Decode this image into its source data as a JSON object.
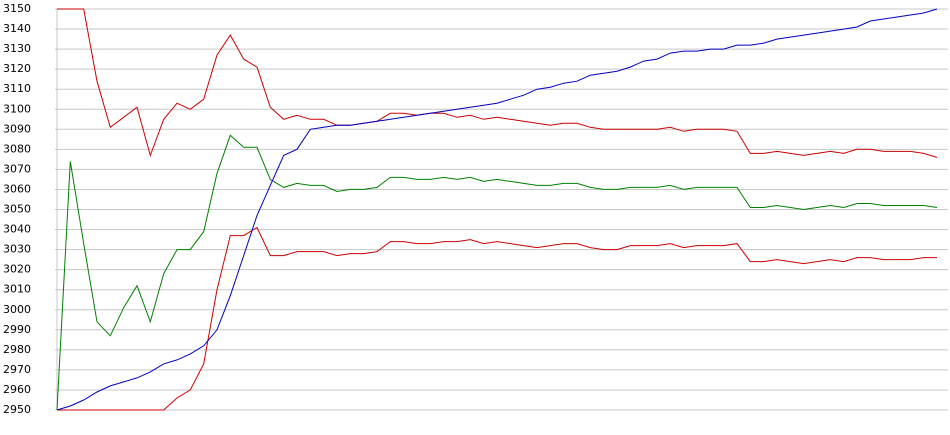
{
  "chart_data": {
    "type": "line",
    "categories": [
      null,
      null,
      null,
      null,
      null,
      null,
      null,
      null,
      null,
      null,
      null,
      null,
      null,
      null,
      null,
      null,
      null,
      null,
      null,
      null,
      null,
      null,
      null,
      null,
      null,
      null,
      null,
      null,
      null,
      null,
      null,
      null,
      null,
      null,
      null,
      null,
      null,
      null,
      null,
      null,
      null,
      null,
      null,
      null,
      null,
      null,
      null,
      null,
      null,
      null,
      null,
      null,
      null,
      null,
      null,
      null,
      null,
      null,
      null,
      null,
      null,
      null,
      null,
      null,
      null,
      null,
      null
    ],
    "ylim": [
      2950,
      3150
    ],
    "yticks": [
      2950,
      2960,
      2970,
      2980,
      2990,
      3000,
      3010,
      3020,
      3030,
      3040,
      3050,
      3060,
      3070,
      3080,
      3090,
      3100,
      3110,
      3120,
      3130,
      3140,
      3150
    ],
    "grid": true,
    "series": [
      {
        "color": "#cc0000",
        "values": [
          3150,
          3150,
          3150,
          3114,
          3091,
          3096,
          3101,
          3077,
          3095,
          3103,
          3100,
          3105,
          3127,
          3137,
          3125,
          3121,
          3101,
          3095,
          3097,
          3095,
          3095,
          3092,
          3092,
          3093,
          3094,
          3098,
          3098,
          3097,
          3098,
          3098,
          3096,
          3097,
          3095,
          3096,
          3095,
          3094,
          3093,
          3092,
          3093,
          3093,
          3091,
          3090,
          3090,
          3090,
          3090,
          3090,
          3091,
          3089,
          3090,
          3090,
          3090,
          3089,
          3078,
          3078,
          3079,
          3078,
          3077,
          3078,
          3079,
          3078,
          3080,
          3080,
          3079,
          3079,
          3079,
          3078,
          3076
        ]
      },
      {
        "color": "#008000",
        "values": [
          2950,
          3074,
          3033,
          2994,
          2987,
          3001,
          3012,
          2994,
          3018,
          3030,
          3030,
          3039,
          3068,
          3087,
          3081,
          3081,
          3065,
          3061,
          3063,
          3062,
          3062,
          3059,
          3060,
          3060,
          3061,
          3066,
          3066,
          3065,
          3065,
          3066,
          3065,
          3066,
          3064,
          3065,
          3064,
          3063,
          3062,
          3062,
          3063,
          3063,
          3061,
          3060,
          3060,
          3061,
          3061,
          3061,
          3062,
          3060,
          3061,
          3061,
          3061,
          3061,
          3051,
          3051,
          3052,
          3051,
          3050,
          3051,
          3052,
          3051,
          3053,
          3053,
          3052,
          3052,
          3052,
          3052,
          3051
        ]
      },
      {
        "color": "#cc0000",
        "values": [
          2950,
          2950,
          2950,
          2950,
          2950,
          2950,
          2950,
          2950,
          2950,
          2956,
          2960,
          2973,
          3010,
          3037,
          3037,
          3041,
          3027,
          3027,
          3029,
          3029,
          3029,
          3027,
          3028,
          3028,
          3029,
          3034,
          3034,
          3033,
          3033,
          3034,
          3034,
          3035,
          3033,
          3034,
          3033,
          3032,
          3031,
          3032,
          3033,
          3033,
          3031,
          3030,
          3030,
          3032,
          3032,
          3032,
          3033,
          3031,
          3032,
          3032,
          3032,
          3033,
          3024,
          3024,
          3025,
          3024,
          3023,
          3024,
          3025,
          3024,
          3026,
          3026,
          3025,
          3025,
          3025,
          3026,
          3026
        ]
      },
      {
        "color": "#0000c0",
        "values": [
          2950,
          2952,
          2955,
          2959,
          2962,
          2964,
          2966,
          2969,
          2973,
          2975,
          2978,
          2982,
          2990,
          3007,
          3027,
          3047,
          3062,
          3077,
          3080,
          3090,
          3091,
          3092,
          3092,
          3093,
          3094,
          3095,
          3096,
          3097,
          3098,
          3099,
          3100,
          3101,
          3102,
          3103,
          3105,
          3107,
          3110,
          3111,
          3113,
          3114,
          3117,
          3118,
          3119,
          3121,
          3124,
          3125,
          3128,
          3129,
          3129,
          3130,
          3130,
          3132,
          3132,
          3133,
          3135,
          3136,
          3137,
          3138,
          3139,
          3140,
          3141,
          3144,
          3145,
          3146,
          3147,
          3148,
          3150
        ]
      }
    ]
  }
}
